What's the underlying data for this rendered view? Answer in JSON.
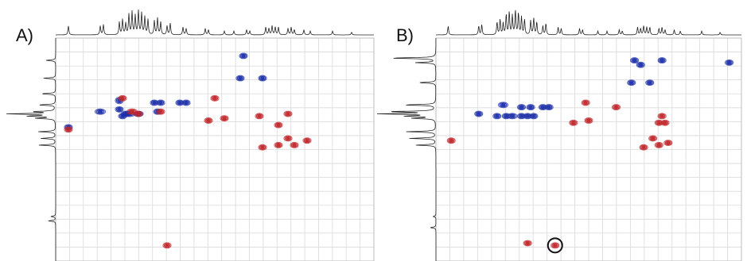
{
  "colors": {
    "positive": "#1c2fa8",
    "negative": "#c0262a",
    "negative_faint": "#d97a7c",
    "grid": "#d9d9d9",
    "trace": "#222222",
    "circle": "#111111"
  },
  "chart_data": [
    {
      "type": "scatter",
      "label": "A)",
      "grid": true,
      "xlim": [
        0,
        100
      ],
      "ylim": [
        0,
        100
      ],
      "top_projection_peaks": [
        [
          4,
          0.35
        ],
        [
          14,
          0.35
        ],
        [
          15,
          0.4
        ],
        [
          20,
          0.5
        ],
        [
          21,
          0.6
        ],
        [
          22,
          0.45
        ],
        [
          23,
          0.8
        ],
        [
          24,
          0.9
        ],
        [
          25,
          0.75
        ],
        [
          26,
          0.95
        ],
        [
          27,
          0.85
        ],
        [
          28,
          0.7
        ],
        [
          29,
          0.6
        ],
        [
          31,
          0.55
        ],
        [
          32,
          0.65
        ],
        [
          33,
          0.5
        ],
        [
          35,
          0.35
        ],
        [
          36,
          0.45
        ],
        [
          40,
          0.3
        ],
        [
          41,
          0.25
        ],
        [
          47,
          0.25
        ],
        [
          48,
          0.2
        ],
        [
          53,
          0.15
        ],
        [
          56,
          0.15
        ],
        [
          60,
          0.2
        ],
        [
          61,
          0.15
        ],
        [
          66,
          0.3
        ],
        [
          67,
          0.25
        ],
        [
          68,
          0.35
        ],
        [
          69,
          0.3
        ],
        [
          70,
          0.3
        ],
        [
          73,
          0.25
        ],
        [
          74,
          0.3
        ],
        [
          75,
          0.2
        ],
        [
          78,
          0.2
        ],
        [
          80,
          0.15
        ],
        [
          87,
          0.15
        ],
        [
          93,
          0.1
        ]
      ],
      "left_projection_peaks": [
        [
          10,
          0.2
        ],
        [
          18,
          0.25
        ],
        [
          25,
          0.3
        ],
        [
          30,
          0.35
        ],
        [
          33,
          0.45
        ],
        [
          34,
          1.0
        ],
        [
          35,
          0.55
        ],
        [
          36,
          0.4
        ],
        [
          42,
          0.35
        ],
        [
          45,
          0.3
        ],
        [
          48,
          0.35
        ],
        [
          80,
          0.1
        ],
        [
          82,
          0.15
        ]
      ],
      "positive_peaks": [
        [
          4,
          40,
          1,
          1
        ],
        [
          14,
          33,
          1.3,
          1
        ],
        [
          20,
          28,
          1,
          1.2
        ],
        [
          20,
          32,
          1,
          1
        ],
        [
          21,
          35,
          1,
          1
        ],
        [
          22,
          34,
          1.1,
          1
        ],
        [
          23,
          34,
          1.6,
          1
        ],
        [
          26,
          34,
          1.2,
          1
        ],
        [
          31,
          29,
          1,
          1
        ],
        [
          33,
          29,
          1,
          1
        ],
        [
          32,
          33,
          1,
          1
        ],
        [
          39,
          29,
          1,
          1
        ],
        [
          41,
          29,
          1,
          1
        ],
        [
          59,
          8,
          1,
          1
        ],
        [
          58,
          18,
          1,
          1
        ],
        [
          65,
          18,
          1,
          1
        ]
      ],
      "negative_peaks": [
        [
          4,
          41,
          1,
          1
        ],
        [
          21,
          27,
          1,
          1
        ],
        [
          24,
          33,
          1.3,
          1
        ],
        [
          26,
          34,
          1,
          1
        ],
        [
          33,
          33,
          1,
          1
        ],
        [
          50,
          27,
          1,
          1
        ],
        [
          64,
          35,
          1,
          1
        ],
        [
          48,
          37,
          1,
          1
        ],
        [
          53,
          36,
          1,
          1
        ],
        [
          73,
          34,
          1,
          1
        ],
        [
          70,
          39,
          1,
          1
        ],
        [
          73,
          45,
          1,
          1
        ],
        [
          70,
          48,
          1,
          1
        ],
        [
          75,
          48,
          1,
          1
        ],
        [
          65,
          49,
          1,
          1
        ],
        [
          79,
          46,
          1,
          1
        ],
        [
          35,
          93,
          1,
          1
        ]
      ]
    },
    {
      "type": "scatter",
      "label": "B)",
      "grid": true,
      "xlim": [
        0,
        100
      ],
      "ylim": [
        0,
        100
      ],
      "top_projection_peaks": [
        [
          4,
          0.35
        ],
        [
          14,
          0.35
        ],
        [
          15,
          0.4
        ],
        [
          20,
          0.5
        ],
        [
          21,
          0.6
        ],
        [
          22,
          0.45
        ],
        [
          23,
          0.8
        ],
        [
          24,
          0.9
        ],
        [
          25,
          0.75
        ],
        [
          26,
          0.95
        ],
        [
          27,
          0.85
        ],
        [
          28,
          0.7
        ],
        [
          29,
          0.6
        ],
        [
          31,
          0.55
        ],
        [
          32,
          0.65
        ],
        [
          33,
          0.5
        ],
        [
          35,
          0.35
        ],
        [
          36,
          0.45
        ],
        [
          40,
          0.3
        ],
        [
          41,
          0.25
        ],
        [
          47,
          0.25
        ],
        [
          48,
          0.2
        ],
        [
          53,
          0.15
        ],
        [
          56,
          0.15
        ],
        [
          60,
          0.2
        ],
        [
          61,
          0.15
        ],
        [
          66,
          0.3
        ],
        [
          67,
          0.25
        ],
        [
          68,
          0.35
        ],
        [
          69,
          0.3
        ],
        [
          70,
          0.3
        ],
        [
          73,
          0.25
        ],
        [
          74,
          0.3
        ],
        [
          75,
          0.2
        ],
        [
          78,
          0.2
        ],
        [
          80,
          0.15
        ],
        [
          87,
          0.15
        ],
        [
          93,
          0.1
        ]
      ],
      "left_projection_peaks": [
        [
          9,
          0.8
        ],
        [
          11,
          0.35
        ],
        [
          20,
          0.3
        ],
        [
          30,
          0.55
        ],
        [
          33,
          0.8
        ],
        [
          34,
          1.0
        ],
        [
          35,
          0.5
        ],
        [
          36,
          0.4
        ],
        [
          42,
          0.5
        ],
        [
          45,
          0.45
        ],
        [
          48,
          0.35
        ],
        [
          80,
          0.05
        ],
        [
          85,
          0.1
        ]
      ],
      "positive_peaks": [
        [
          65,
          10,
          1,
          1
        ],
        [
          67,
          12,
          1,
          1
        ],
        [
          74,
          10,
          1,
          1
        ],
        [
          96,
          11,
          1,
          1
        ],
        [
          64,
          20,
          1,
          1
        ],
        [
          70,
          20,
          1,
          1
        ],
        [
          22,
          30,
          1.2,
          1
        ],
        [
          28,
          31,
          1,
          1
        ],
        [
          31,
          31,
          1,
          1
        ],
        [
          35,
          31,
          1,
          1
        ],
        [
          37,
          31,
          1,
          1
        ],
        [
          14,
          34,
          1,
          1
        ],
        [
          20,
          35,
          1,
          1
        ],
        [
          23,
          35,
          1,
          1
        ],
        [
          25,
          35,
          1.2,
          1
        ],
        [
          28,
          35,
          1,
          1
        ],
        [
          30,
          35,
          1,
          1
        ],
        [
          32,
          35,
          1,
          1
        ]
      ],
      "negative_peaks": [
        [
          49,
          29,
          1,
          1
        ],
        [
          59,
          31,
          1,
          1
        ],
        [
          5,
          46,
          1,
          1
        ],
        [
          45,
          38,
          1,
          1
        ],
        [
          50,
          37,
          1,
          1
        ],
        [
          74,
          35,
          1,
          1
        ],
        [
          73,
          38,
          1,
          1
        ],
        [
          75,
          38,
          1,
          1
        ],
        [
          71,
          45,
          1,
          1
        ],
        [
          76,
          47,
          1,
          1
        ],
        [
          68,
          49,
          1,
          1
        ],
        [
          73,
          48,
          1,
          1
        ],
        [
          30,
          92,
          1,
          1
        ],
        [
          39,
          93,
          1,
          1
        ]
      ],
      "circled_peak": [
        39,
        93
      ]
    }
  ]
}
